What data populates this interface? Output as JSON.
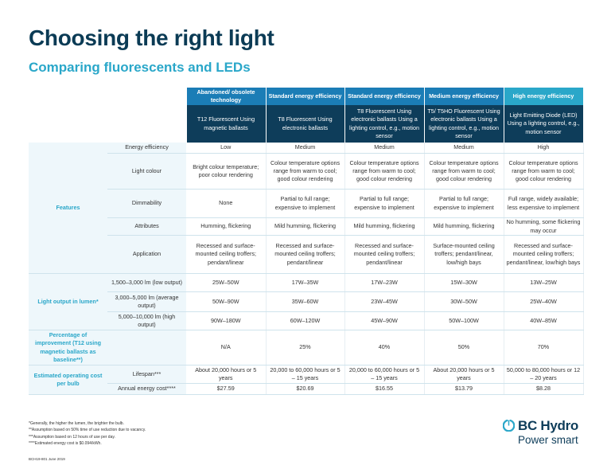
{
  "title": "Choosing the right light",
  "subtitle": "Comparing fluorescents and LEDs",
  "columns": [
    {
      "head": "Abandoned/ obsolete technology",
      "type": "T12 Fluorescent Using magnetic ballasts"
    },
    {
      "head": "Standard energy efficiency",
      "type": "T8 Fluorescent Using electronic ballasts"
    },
    {
      "head": "Standard energy efficiency",
      "type": "T8 Fluorescent Using electronic ballasts Using a lighting control, e.g., motion sensor"
    },
    {
      "head": "Medium energy efficiency",
      "type": "T5/ T5HO Fluorescent Using electronic ballasts Using a lighting control, e.g., motion sensor"
    },
    {
      "head": "High energy efficiency",
      "type": "Light Emitting Diode (LED) Using a lighting control, e.g., motion sensor"
    }
  ],
  "categories": {
    "features": "Features",
    "light_output": "Light output in lumen*",
    "percentage": "Percentage of improvement (T12 using magnetic ballasts as baseline**)",
    "operating": "Estimated operating cost per bulb"
  },
  "rows": {
    "energy": {
      "label": "Energy efficiency",
      "values": [
        "Low",
        "Medium",
        "Medium",
        "Medium",
        "High"
      ]
    },
    "colour": {
      "label": "Light colour",
      "values": [
        "Bright colour temperature; poor colour rendering",
        "Colour temperature options range from warm to cool; good colour rendering",
        "Colour temperature options range from warm to cool; good colour rendering",
        "Colour temperature options range from warm to cool; good colour rendering",
        "Colour temperature options range from warm to cool; good colour rendering"
      ]
    },
    "dimmability": {
      "label": "Dimmability",
      "values": [
        "None",
        "Partial to full range; expensive to implement",
        "Partial to full range; expensive to implement",
        "Partial to full range; expensive to implement",
        "Full range, widely available; less expensive to implement"
      ]
    },
    "attributes": {
      "label": "Attributes",
      "values": [
        "Humming, flickering",
        "Mild humming, flickering",
        "Mild humming, flickering",
        "Mild humming, flickering",
        "No humming, some flickering may occur"
      ]
    },
    "application": {
      "label": "Application",
      "values": [
        "Recessed and surface-mounted ceiling troffers; pendant/linear",
        "Recessed and surface-mounted ceiling troffers; pendant/linear",
        "Recessed and surface-mounted ceiling troffers; pendant/linear",
        "Surface-mounted ceiling troffers; pendant/linear, low/high bays",
        "Recessed and surface-mounted ceiling troffers; pendant/linear, low/high bays"
      ]
    },
    "low": {
      "label": "1,500–3,000 lm (low output)",
      "values": [
        "25W–50W",
        "17W–35W",
        "17W–23W",
        "15W–30W",
        "13W–25W"
      ]
    },
    "average": {
      "label": "3,000–5,000 lm (average output)",
      "values": [
        "50W–90W",
        "35W–60W",
        "23W–45W",
        "30W–50W",
        "25W–40W"
      ]
    },
    "high": {
      "label": "5,000–10,000 lm (high output)",
      "values": [
        "90W–180W",
        "60W–120W",
        "45W–90W",
        "50W–100W",
        "40W–85W"
      ]
    },
    "percent": {
      "values": [
        "N/A",
        "25%",
        "40%",
        "50%",
        "70%"
      ]
    },
    "lifespan": {
      "label": "Lifespan***",
      "values": [
        "About 20,000 hours or 5 years",
        "20,000 to 60,000 hours or 5 – 15 years",
        "20,000 to 60,000 hours or 5 – 15 years",
        "About 20,000 hours or 5 years",
        "50,000 to 80,000 hours or 12 – 20 years"
      ]
    },
    "cost": {
      "label": "Annual energy cost****",
      "values": [
        "$27.59",
        "$20.69",
        "$16.55",
        "$13.79",
        "$8.28"
      ]
    }
  },
  "footnotes": [
    "*Generally, the higher the lumen, the brighter the bulb.",
    "**Assumption based on 50% time of use reduction due to vacancy.",
    "***Assumption based on 12 hours of use per day.",
    "****Estimated energy cost is $0.094/kWh."
  ],
  "doc_code": "BCH19-801     June 2019",
  "logo": {
    "name": "BC Hydro",
    "tagline": "Power smart",
    "icon": "bc-hydro-logo-icon"
  },
  "colors": {
    "navy": "#0e3d5a",
    "blue": "#1b7db6",
    "teal": "#2aa7c9",
    "light": "#eef7fb"
  }
}
